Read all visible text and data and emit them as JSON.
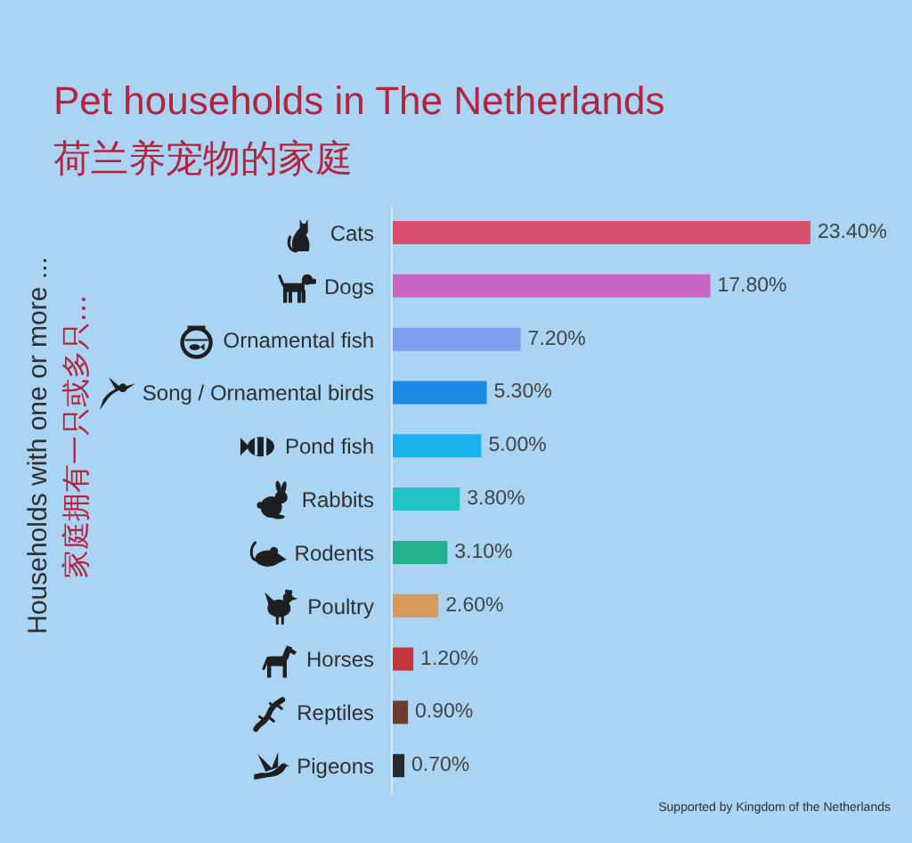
{
  "chart_data": {
    "type": "bar",
    "orientation": "horizontal",
    "title": "Pet households in The Netherlands",
    "subtitle": "荷兰养宠物的家庭",
    "ylabel": "Households with one or more ...",
    "categories": [
      "Cats",
      "Dogs",
      "Ornamental fish",
      "Song / Ornamental birds",
      "Pond fish",
      "Rabbits",
      "Rodents",
      "Poultry",
      "Horses",
      "Reptiles",
      "Pigeons"
    ],
    "values": [
      23.4,
      17.8,
      7.2,
      5.3,
      5.0,
      3.8,
      3.1,
      2.6,
      1.2,
      0.9,
      0.7
    ],
    "colors": [
      "#d9506e",
      "#c766c4",
      "#7f9ef0",
      "#1e88e5",
      "#19b2ee",
      "#22c2c6",
      "#23b18f",
      "#d8995a",
      "#c23a3e",
      "#6e3b33",
      "#2a2a2a"
    ],
    "value_labels": [
      "23.40%",
      "17.80%",
      "7.20%",
      "5.30%",
      "5.00%",
      "3.80%",
      "3.10%",
      "2.60%",
      "1.20%",
      "0.90%",
      "0.70%"
    ],
    "annotations": [
      "家庭拥有一只或多只...",
      "Supported by Kingdom of the Netherlands"
    ]
  }
}
